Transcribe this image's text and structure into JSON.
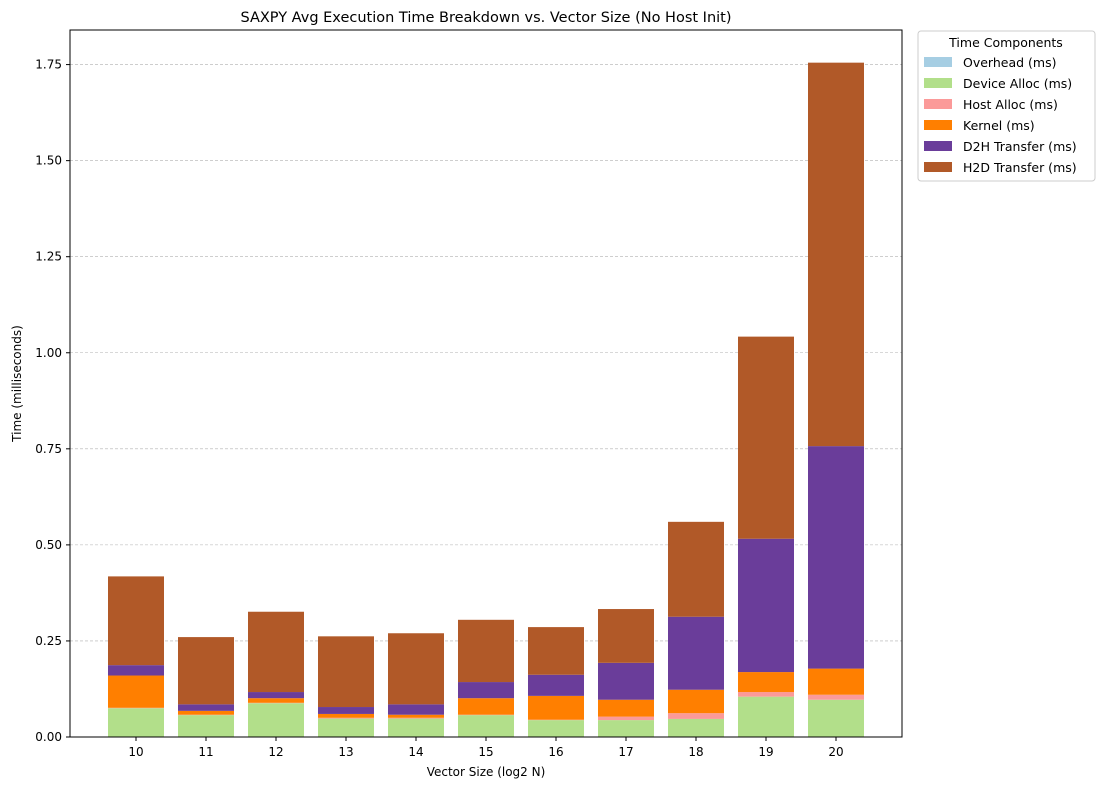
{
  "chart_data": {
    "type": "bar",
    "stacked": true,
    "title": "SAXPY Avg Execution Time Breakdown vs. Vector Size (No Host Init)",
    "xlabel": "Vector Size (log2 N)",
    "ylabel": "Time (milliseconds)",
    "ylim": [
      0,
      1.84
    ],
    "yticks": [
      "0.00",
      "0.25",
      "0.50",
      "0.75",
      "1.00",
      "1.25",
      "1.50",
      "1.75"
    ],
    "ytick_values": [
      0,
      0.25,
      0.5,
      0.75,
      1.0,
      1.25,
      1.5,
      1.75
    ],
    "grid": "horizontal dashed",
    "legend_position": "outside-top-right",
    "legend_title": "Time Components",
    "categories": [
      "10",
      "11",
      "12",
      "13",
      "14",
      "15",
      "16",
      "17",
      "18",
      "19",
      "20"
    ],
    "series": [
      {
        "name": "Overhead (ms)",
        "color": "#a6cee3",
        "values": [
          0,
          0,
          0,
          0,
          0,
          0,
          0,
          0,
          0,
          0,
          0
        ]
      },
      {
        "name": "Device Alloc (ms)",
        "color": "#b2df8a",
        "values": [
          0.075,
          0.057,
          0.088,
          0.048,
          0.048,
          0.057,
          0.044,
          0.044,
          0.047,
          0.105,
          0.097
        ]
      },
      {
        "name": "Host Alloc (ms)",
        "color": "#fb9a99",
        "values": [
          0.001,
          0.001,
          0.001,
          0.002,
          0.002,
          0.001,
          0.001,
          0.009,
          0.015,
          0.012,
          0.013
        ]
      },
      {
        "name": "Kernel (ms)",
        "color": "#ff7f00",
        "values": [
          0.084,
          0.01,
          0.012,
          0.01,
          0.008,
          0.043,
          0.062,
          0.044,
          0.061,
          0.052,
          0.068
        ]
      },
      {
        "name": "D2H Transfer (ms)",
        "color": "#6a3d9a",
        "values": [
          0.027,
          0.017,
          0.016,
          0.018,
          0.027,
          0.042,
          0.055,
          0.096,
          0.19,
          0.347,
          0.579
        ]
      },
      {
        "name": "H2D Transfer (ms)",
        "color": "#b15928",
        "values": [
          0.231,
          0.175,
          0.209,
          0.184,
          0.185,
          0.162,
          0.124,
          0.14,
          0.247,
          0.526,
          0.998
        ]
      }
    ]
  }
}
